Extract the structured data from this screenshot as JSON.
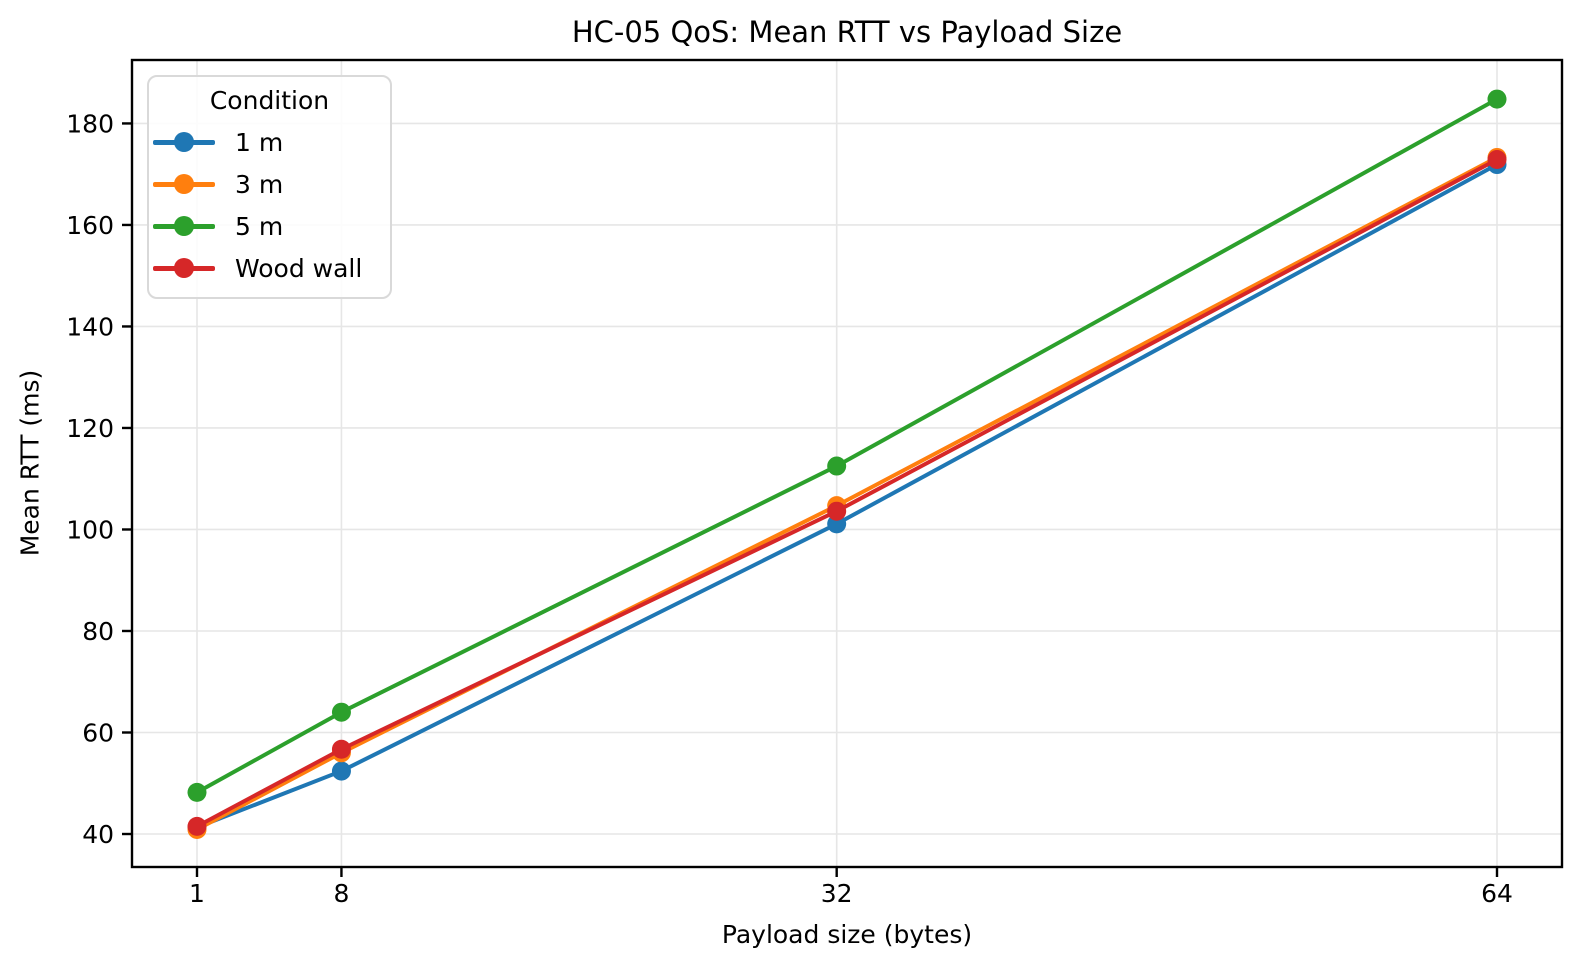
{
  "chart_data": {
    "type": "line",
    "title": "HC-05 QoS: Mean RTT vs Payload Size",
    "xlabel": "Payload size (bytes)",
    "ylabel": "Mean RTT (ms)",
    "legend_title": "Condition",
    "legend_position": "upper left",
    "grid": true,
    "x": [
      1,
      8,
      32,
      64
    ],
    "x_tick_labels": [
      "1",
      "8",
      "32",
      "64"
    ],
    "y_ticks": [
      40,
      60,
      80,
      100,
      120,
      140,
      160,
      180
    ],
    "xlim": [
      -2.15,
      67.15
    ],
    "ylim": [
      33.5,
      192.5
    ],
    "series": [
      {
        "name": "1 m",
        "color": "#1f77b4",
        "values": [
          41.3,
          52.4,
          101.1,
          171.9
        ]
      },
      {
        "name": "3 m",
        "color": "#ff7f0e",
        "values": [
          40.9,
          56.0,
          104.7,
          173.3
        ]
      },
      {
        "name": "5 m",
        "color": "#2ca02c",
        "values": [
          48.2,
          64.0,
          112.5,
          184.8
        ]
      },
      {
        "name": "Wood wall",
        "color": "#d62728",
        "values": [
          41.5,
          56.7,
          103.6,
          172.9
        ]
      }
    ],
    "style": {
      "grid_color": "#e6e6e6",
      "spine_color": "#000000",
      "tick_color": "#000000",
      "background": "#ffffff"
    }
  }
}
